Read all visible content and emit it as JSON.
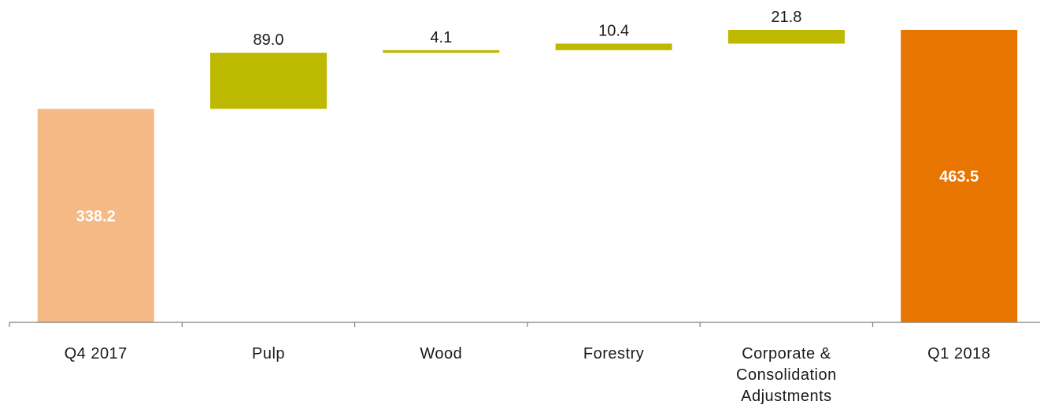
{
  "chart_data": {
    "type": "bar",
    "subtype": "waterfall",
    "title": "",
    "xlabel": "",
    "ylabel": "",
    "ylim": [
      0,
      463.5
    ],
    "grid": false,
    "categories": [
      "Q4 2017",
      "Pulp",
      "Wood",
      "Forestry",
      "Corporate & Consolidation Adjustments",
      "Q1 2018"
    ],
    "category_label_lines": [
      [
        "Q4 2017"
      ],
      [
        "Pulp"
      ],
      [
        "Wood"
      ],
      [
        "Forestry"
      ],
      [
        "Corporate &",
        "Consolidation",
        "Adjustments"
      ],
      [
        "Q1 2018"
      ]
    ],
    "bars": [
      {
        "category": "Q4 2017",
        "kind": "total",
        "start": 0,
        "end": 338.2,
        "value": 338.2,
        "label": "338.2",
        "label_position": "inside"
      },
      {
        "category": "Pulp",
        "kind": "delta",
        "start": 338.2,
        "end": 427.2,
        "value": 89.0,
        "label": "89.0",
        "label_position": "above"
      },
      {
        "category": "Wood",
        "kind": "delta",
        "start": 427.2,
        "end": 431.3,
        "value": 4.1,
        "label": "4.1",
        "label_position": "above"
      },
      {
        "category": "Forestry",
        "kind": "delta",
        "start": 431.3,
        "end": 441.7,
        "value": 10.4,
        "label": "10.4",
        "label_position": "above"
      },
      {
        "category": "Corporate & Consolidation Adjustments",
        "kind": "delta",
        "start": 441.7,
        "end": 463.5,
        "value": 21.8,
        "label": "21.8",
        "label_position": "above"
      },
      {
        "category": "Q1 2018",
        "kind": "total",
        "start": 0,
        "end": 463.5,
        "value": 463.5,
        "label": "463.5",
        "label_position": "inside"
      }
    ],
    "colors": {
      "start_total": "#F4B984",
      "end_total": "#E87500",
      "delta": "#BDB800",
      "axis": "#7f7f7f"
    }
  }
}
